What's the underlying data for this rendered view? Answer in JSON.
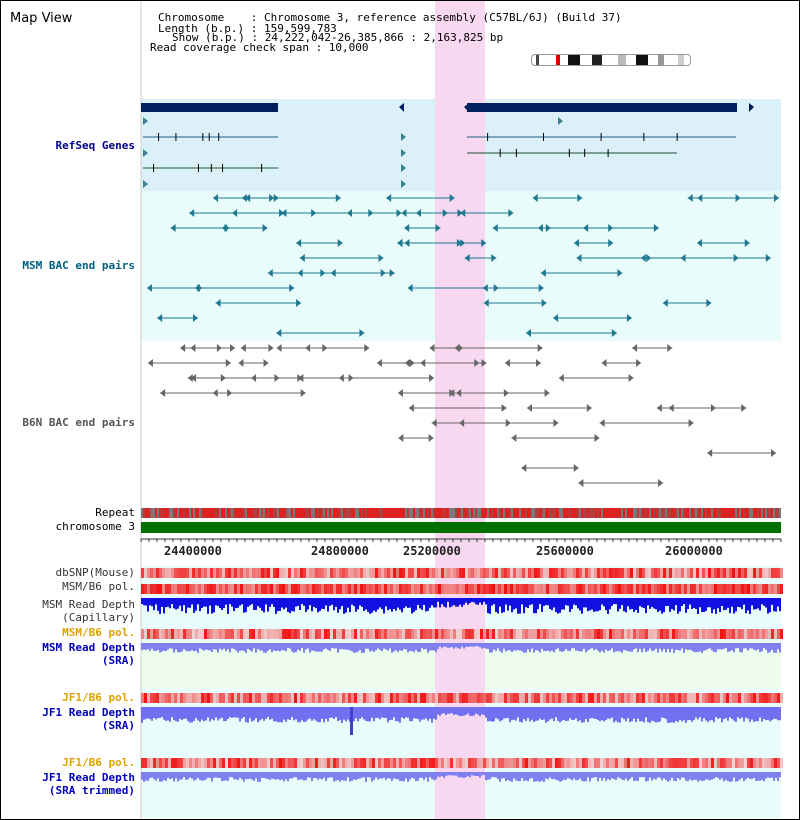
{
  "header": {
    "map_title": "Map View",
    "chromosome_line": "Chromosome    : Chromosome 3, reference assembly (C57BL/6J) (Build 37)",
    "length_line": "Length (b.p.) : 159,599,783",
    "show_line": "Show (b.p.) : 24,222,042-26,385,866 : 2,163,825 bp",
    "coverage_line": "Read coverage check span : 10,000"
  },
  "tracks": {
    "refseq": "RefSeq Genes",
    "msm_bac": "MSM BAC end pairs",
    "b6n_bac": "B6N BAC end pairs",
    "repeat": "Repeat",
    "chrom": "chromosome 3",
    "dbsnp": "dbSNP(Mouse)",
    "msm_b6_pol_1": "MSM/B6 pol.",
    "msm_depth_cap_1": "MSM Read Depth",
    "msm_depth_cap_2": "(Capillary)",
    "msm_b6_pol_2": "MSM/B6 pol.",
    "msm_depth_sra_1": "MSM Read Depth",
    "msm_depth_sra_2": "(SRA)",
    "jf1_b6_pol_1": "JF1/B6 pol.",
    "jf1_depth_sra_1": "JF1 Read Depth",
    "jf1_depth_sra_2": "(SRA)",
    "jf1_b6_pol_2": "JF1/B6 pol.",
    "jf1_depth_trim_1": "JF1 Read Depth",
    "jf1_depth_trim_2": "(SRA trimmed)"
  },
  "ruler": {
    "ticks": [
      "24400000",
      "24800000",
      "25200000",
      "25600000",
      "26000000"
    ]
  },
  "colors": {
    "refseq_label": "#00008b",
    "msm_label": "#006080",
    "b6n_label": "#555555",
    "pol_orange": "#e0a000",
    "depth_blue": "#0000c0",
    "highlight_pink": "#f8d8f0",
    "chrom_green": "#007000"
  }
}
